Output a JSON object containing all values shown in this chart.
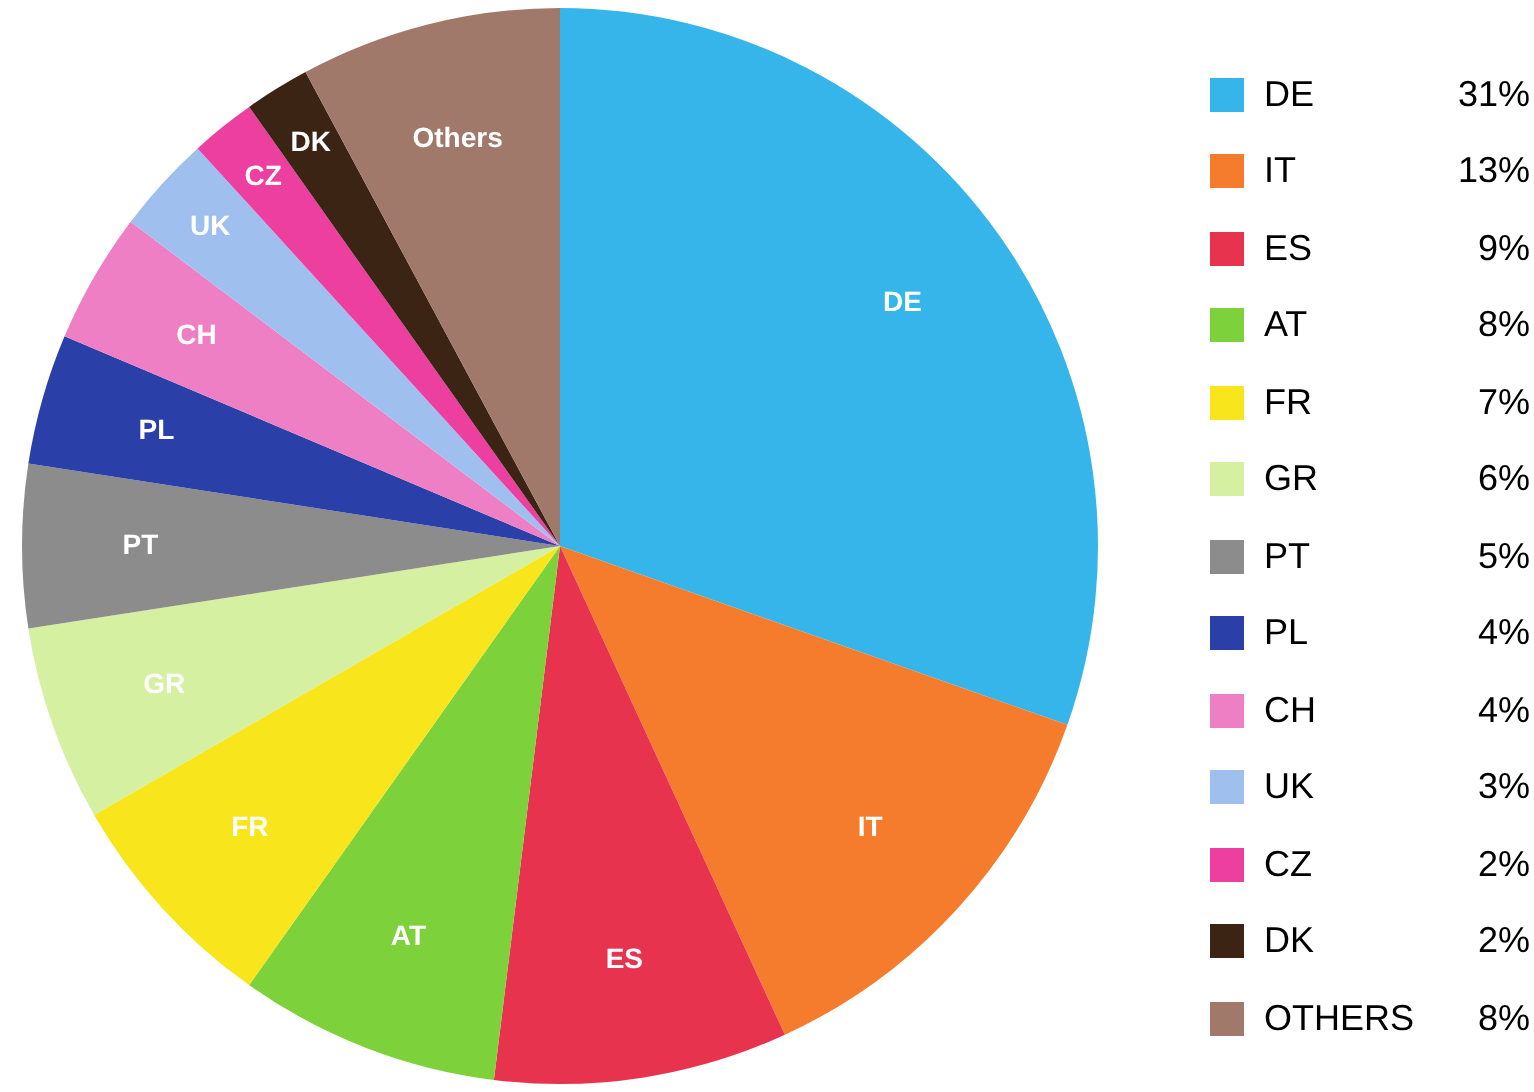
{
  "chart_data": {
    "type": "pie",
    "categories": [
      "DE",
      "IT",
      "ES",
      "AT",
      "FR",
      "GR",
      "PT",
      "PL",
      "CH",
      "UK",
      "CZ",
      "DK",
      "OTHERS"
    ],
    "annotations": [
      {
        "text": "Others",
        "x": "OTHERS"
      }
    ],
    "values": [
      31,
      13,
      9,
      8,
      7,
      6,
      5,
      4,
      4,
      3,
      2,
      2,
      8
    ],
    "value_labels": [
      "31%",
      "13%",
      "9%",
      "8%",
      "7%",
      "6%",
      "5%",
      "4%",
      "4%",
      "3%",
      "2%",
      "2%",
      "8%"
    ],
    "colors": [
      "#35b5ea",
      "#f47c2c",
      "#e8334f",
      "#7dd13b",
      "#f9e51b",
      "#d4f0a0",
      "#8c8c8c",
      "#2b3fa8",
      "#ee7fc4",
      "#9fc0ef",
      "#ec3fa0",
      "#3b2414",
      "#a0796a"
    ],
    "legend": "right"
  }
}
